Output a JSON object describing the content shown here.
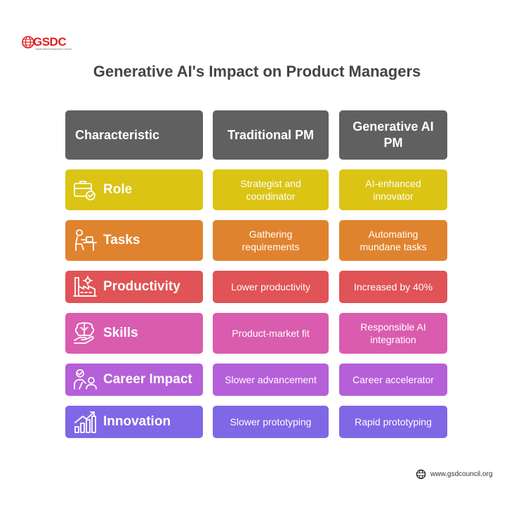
{
  "brand": {
    "name": "GSDC",
    "tagline": "Global Skill Development Council"
  },
  "title": "Generative AI's Impact on Product Managers",
  "headers": [
    "Characteristic",
    "Traditional PM",
    "Generative AI PM"
  ],
  "rows": [
    {
      "label": "Role",
      "icon": "briefcase-check-icon",
      "color": "#DBC414",
      "traditional": "Strategist and coordinator",
      "generative": "AI-enhanced innovator"
    },
    {
      "label": "Tasks",
      "icon": "person-at-desk-icon",
      "color": "#E0832E",
      "traditional": "Gathering requirements",
      "generative": "Automating mundane tasks"
    },
    {
      "label": "Productivity",
      "icon": "factory-icon",
      "color": "#E05356",
      "traditional": "Lower productivity",
      "generative": "Increased by 40%"
    },
    {
      "label": "Skills",
      "icon": "brain-in-hand-icon",
      "color": "#DA5CAE",
      "traditional": "Product-market fit",
      "generative": "Responsible AI integration"
    },
    {
      "label": "Career Impact",
      "icon": "people-presentation-icon",
      "color": "#B55FD8",
      "traditional": "Slower advancement",
      "generative": "Career accelerator"
    },
    {
      "label": "Innovation",
      "icon": "growth-chart-icon",
      "color": "#7F67E6",
      "traditional": "Slower prototyping",
      "generative": "Rapid prototyping"
    }
  ],
  "header_color": "#606060",
  "footer": {
    "url": "www.gsdcouncil.org"
  }
}
